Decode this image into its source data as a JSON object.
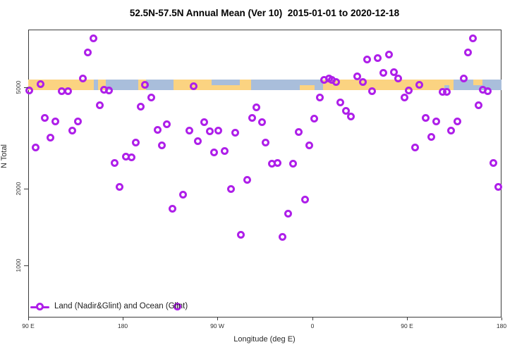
{
  "title": "52.5N-57.5N Annual Mean (Ver 10)  2015-01-01 to 2020-12-18",
  "chart_data": {
    "type": "scatter",
    "title": "52.5N-57.5N Annual Mean (Ver 10)  2015-01-01 to 2020-12-18",
    "xlabel": "Longitude (deg E)",
    "ylabel": "N Total",
    "y_scale": "log10",
    "y_ticks": [
      {
        "v": 1000,
        "label": "1000"
      },
      {
        "v": 2000,
        "label": "2000"
      },
      {
        "v": 5000,
        "label": "5000"
      }
    ],
    "y_range_approx": [
      620,
      8400
    ],
    "x_axis_span_deg": 450,
    "x_axis_note": "x = degrees eastward from left edge; axis wraps 90E > 180 > 90W > 0 > 90E > 180",
    "x_ticks": [
      {
        "d": 0,
        "label": "90 E"
      },
      {
        "d": 90,
        "label": "180"
      },
      {
        "d": 180,
        "label": "90 W"
      },
      {
        "d": 270,
        "label": "0"
      },
      {
        "d": 360,
        "label": "90 E"
      },
      {
        "d": 450,
        "label": "180"
      }
    ],
    "legend": {
      "label": "Land (Nadir&Glint) and Ocean (Glint)"
    },
    "marker_color": "#AE1FE9",
    "grid": false,
    "band": {
      "description": "land/ocean strip for 52.5N-57.5N latitude belt",
      "land_color": "#FBD381",
      "ocean_color": "#A9BEDB",
      "v_top": 5360,
      "v_bottom": 4870,
      "segments": [
        {
          "from": 0,
          "to": 62.5,
          "surface": "land"
        },
        {
          "from": 62.5,
          "to": 66.5,
          "surface": "ocean"
        },
        {
          "from": 66.5,
          "to": 74,
          "surface": "land"
        },
        {
          "from": 74,
          "to": 104.8,
          "surface": "ocean"
        },
        {
          "from": 104.8,
          "to": 112.2,
          "surface": "land"
        },
        {
          "from": 112.2,
          "to": 138.4,
          "surface": "ocean"
        },
        {
          "from": 138.4,
          "to": 211.6,
          "surface": "land"
        },
        {
          "from": 211.6,
          "to": 280.1,
          "surface": "ocean"
        },
        {
          "from": 280.1,
          "to": 404.3,
          "surface": "land"
        },
        {
          "from": 404.3,
          "to": 450,
          "surface": "ocean"
        }
      ],
      "patches": [
        {
          "from": 174.6,
          "to": 201.4,
          "surface": "ocean",
          "vpos": "top"
        },
        {
          "from": 258,
          "to": 272,
          "surface": "land",
          "vpos": "bottom"
        },
        {
          "from": 395.7,
          "to": 400.4,
          "surface": "ocean",
          "vpos": "bottom"
        },
        {
          "from": 423,
          "to": 431.8,
          "surface": "land",
          "vpos": "top"
        }
      ]
    },
    "points": [
      [
        62,
        7800
      ],
      [
        57,
        6870
      ],
      [
        52,
        5400
      ],
      [
        12,
        5130
      ],
      [
        1,
        4870
      ],
      [
        32,
        4840
      ],
      [
        38,
        4840
      ],
      [
        72,
        4900
      ],
      [
        77,
        4870
      ],
      [
        111,
        5100
      ],
      [
        68,
        4240
      ],
      [
        107,
        4210
      ],
      [
        16,
        3800
      ],
      [
        26,
        3680
      ],
      [
        47,
        3680
      ],
      [
        42,
        3370
      ],
      [
        21,
        3180
      ],
      [
        7,
        2910
      ],
      [
        102,
        3030
      ],
      [
        93,
        2680
      ],
      [
        98,
        2650
      ],
      [
        82,
        2530
      ],
      [
        157,
        5060
      ],
      [
        117,
        4570
      ],
      [
        217,
        4160
      ],
      [
        213,
        3780
      ],
      [
        222,
        3660
      ],
      [
        167,
        3640
      ],
      [
        132,
        3590
      ],
      [
        123,
        3410
      ],
      [
        153,
        3390
      ],
      [
        173,
        3350
      ],
      [
        181,
        3390
      ],
      [
        197,
        3310
      ],
      [
        161,
        3080
      ],
      [
        127,
        2950
      ],
      [
        177,
        2780
      ],
      [
        187,
        2820
      ],
      [
        322,
        6440
      ],
      [
        332,
        6520
      ],
      [
        338,
        5710
      ],
      [
        313,
        5530
      ],
      [
        318,
        5260
      ],
      [
        327,
        4840
      ],
      [
        281,
        5360
      ],
      [
        286,
        5400
      ],
      [
        289,
        5360
      ],
      [
        293,
        5260
      ],
      [
        277,
        4570
      ],
      [
        297,
        4350
      ],
      [
        302,
        4050
      ],
      [
        307,
        3830
      ],
      [
        272,
        3760
      ],
      [
        257,
        3330
      ],
      [
        267,
        2950
      ],
      [
        232,
        2500
      ],
      [
        237,
        2530
      ],
      [
        252,
        2500
      ],
      [
        226,
        3040
      ],
      [
        423,
        7800
      ],
      [
        418,
        6870
      ],
      [
        343,
        6740
      ],
      [
        348,
        5750
      ],
      [
        352,
        5430
      ],
      [
        414,
        5400
      ],
      [
        372,
        5100
      ],
      [
        362,
        4870
      ],
      [
        394,
        4810
      ],
      [
        398,
        4810
      ],
      [
        432,
        4900
      ],
      [
        437,
        4840
      ],
      [
        358,
        4570
      ],
      [
        428,
        4260
      ],
      [
        378,
        3800
      ],
      [
        388,
        3680
      ],
      [
        408,
        3680
      ],
      [
        402,
        3370
      ],
      [
        383,
        3200
      ],
      [
        368,
        2910
      ],
      [
        442,
        2530
      ],
      [
        87,
        2030
      ],
      [
        208,
        2160
      ],
      [
        193,
        1990
      ],
      [
        147,
        1890
      ],
      [
        137,
        1670
      ],
      [
        202,
        1320
      ],
      [
        142,
        690
      ],
      [
        263,
        1810
      ],
      [
        247,
        1600
      ],
      [
        242,
        1290
      ],
      [
        447,
        2030
      ]
    ]
  }
}
